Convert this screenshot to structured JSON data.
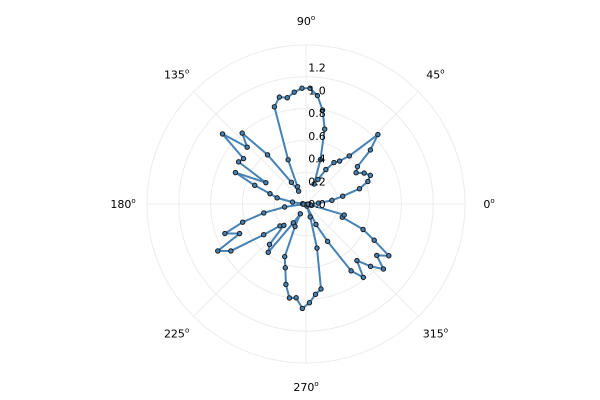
{
  "chart_data": {
    "type": "polar-line",
    "angle_unit": "degrees",
    "angular_ticks": [
      {
        "value": 0,
        "label": "0",
        "sup": "o"
      },
      {
        "value": 45,
        "label": "45",
        "sup": "o"
      },
      {
        "value": 90,
        "label": "90",
        "sup": "o"
      },
      {
        "value": 135,
        "label": "135",
        "sup": "o"
      },
      {
        "value": 180,
        "label": "180",
        "sup": "o"
      },
      {
        "value": 225,
        "label": "225",
        "sup": "o"
      },
      {
        "value": 270,
        "label": "270",
        "sup": "o"
      },
      {
        "value": 315,
        "label": "315",
        "sup": "o"
      }
    ],
    "radial_ticks": [
      "0.0",
      "0.2",
      "0.4",
      "0.6",
      "0.8",
      "1.0",
      "1.2"
    ],
    "rlim": [
      0,
      1.4
    ],
    "grid": true,
    "legend": "none",
    "colors": {
      "line": "#4682b4",
      "marker": "#4682b4",
      "marker_edge": "#1a1a1a",
      "grid": "#ececec"
    },
    "series": [
      {
        "theta": [
          0,
          4,
          8,
          12,
          16,
          20,
          24,
          28,
          32,
          36,
          40,
          44,
          48,
          52,
          56,
          60,
          64,
          68,
          72,
          76,
          80,
          84,
          88,
          92,
          96,
          100,
          104,
          108,
          112,
          116,
          120,
          124,
          128,
          132,
          136,
          140,
          144,
          148,
          152,
          156,
          160,
          164,
          168,
          172,
          176,
          180,
          184,
          188,
          192,
          196,
          200,
          204,
          208,
          212,
          216,
          220,
          224,
          228,
          232,
          236,
          240,
          244,
          248,
          252,
          256,
          260,
          264,
          268,
          272,
          276,
          280,
          284,
          288,
          292,
          296,
          300,
          304,
          308,
          312,
          316,
          320,
          324,
          328,
          332,
          336,
          340,
          344,
          348,
          352,
          356
        ],
        "r": [
          0.03,
          0.11,
          0.23,
          0.33,
          0.49,
          0.58,
          0.62,
          0.58,
          0.52,
          0.56,
          0.74,
          0.88,
          0.57,
          0.48,
          0.44,
          0.35,
          0.24,
          0.19,
          0.41,
          0.68,
          0.84,
          0.96,
          1.02,
          1.02,
          0.99,
          0.95,
          0.97,
          0.9,
          0.42,
          0.17,
          0.13,
          0.23,
          0.55,
          0.84,
          0.72,
          0.96,
          0.68,
          0.7,
          0.4,
          0.68,
          0.48,
          0.33,
          0.26,
          0.12,
          0.03,
          0.03,
          0.02,
          0.19,
          0.38,
          0.58,
          0.76,
          0.64,
          0.88,
          0.78,
          0.46,
          0.3,
          0.27,
          0.48,
          0.54,
          0.2,
          0.1,
          0.22,
          0.5,
          0.59,
          0.73,
          0.84,
          0.83,
          0.92,
          0.87,
          0.8,
          0.76,
          0.4,
          0.12,
          0.02,
          0.2,
          0.38,
          0.71,
          0.82,
          0.67,
          0.79,
          0.89,
          0.77,
          0.86,
          0.68,
          0.55,
          0.34,
          0.35,
          0.04,
          0.01,
          0.02
        ]
      }
    ]
  }
}
